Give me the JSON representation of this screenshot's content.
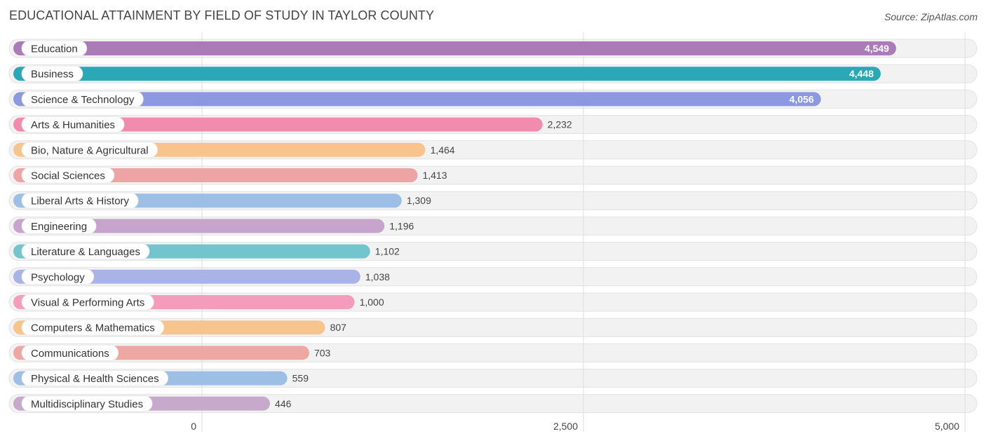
{
  "title": "EDUCATIONAL ATTAINMENT BY FIELD OF STUDY IN TAYLOR COUNTY",
  "source": "Source: ZipAtlas.com",
  "chart_data": {
    "type": "bar",
    "orientation": "horizontal",
    "title": "EDUCATIONAL ATTAINMENT BY FIELD OF STUDY IN TAYLOR COUNTY",
    "xlabel": "",
    "ylabel": "",
    "xlim": [
      0,
      5000
    ],
    "xticks": [
      0,
      2500,
      5000
    ],
    "xtick_labels": [
      "0",
      "2,500",
      "5,000"
    ],
    "grid": true,
    "categories": [
      "Education",
      "Business",
      "Science & Technology",
      "Arts & Humanities",
      "Bio, Nature & Agricultural",
      "Social Sciences",
      "Liberal Arts & History",
      "Engineering",
      "Literature & Languages",
      "Psychology",
      "Visual & Performing Arts",
      "Computers & Mathematics",
      "Communications",
      "Physical & Health Sciences",
      "Multidisciplinary Studies"
    ],
    "values": [
      4549,
      4448,
      4056,
      2232,
      1464,
      1413,
      1309,
      1196,
      1102,
      1038,
      1000,
      807,
      703,
      559,
      446
    ],
    "value_labels": [
      "4,549",
      "4,448",
      "4,056",
      "2,232",
      "1,464",
      "1,413",
      "1,309",
      "1,196",
      "1,102",
      "1,038",
      "1,000",
      "807",
      "703",
      "559",
      "446"
    ],
    "colors": [
      "#ab7bb8",
      "#2ba8b8",
      "#8c99e0",
      "#f28caf",
      "#f8c48e",
      "#eea4a4",
      "#9dbfe6",
      "#c7a4cc",
      "#72c5cc",
      "#a9b3e8",
      "#f59cbc",
      "#f8c48e",
      "#eea8a4",
      "#9dbfe6",
      "#c7a9cc"
    ]
  }
}
